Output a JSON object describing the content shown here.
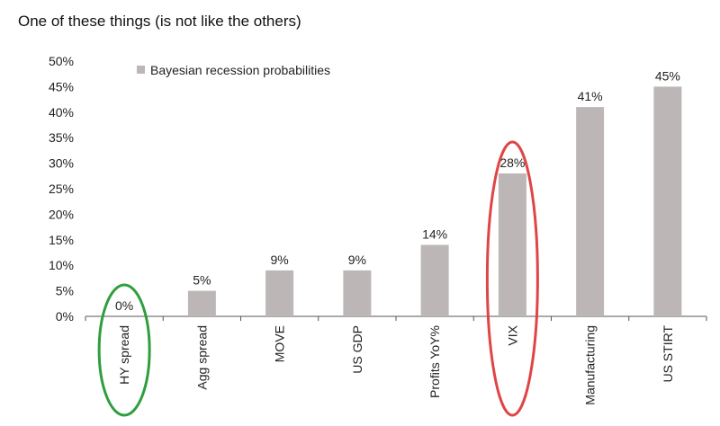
{
  "title": "One of these things (is not like the others)",
  "chart_data": {
    "type": "bar",
    "categories": [
      "HY spread",
      "Agg spread",
      "MOVE",
      "US GDP",
      "Profits YoY%",
      "VIX",
      "Manufacturing",
      "US STIRT"
    ],
    "series": [
      {
        "name": "Bayesian recession probabilities",
        "values": [
          0,
          5,
          9,
          9,
          14,
          28,
          41,
          45
        ]
      }
    ],
    "data_labels": [
      "0%",
      "5%",
      "9%",
      "9%",
      "14%",
      "28%",
      "41%",
      "45%"
    ],
    "ylim": [
      0,
      50
    ],
    "yticks": [
      "0%",
      "5%",
      "10%",
      "15%",
      "20%",
      "25%",
      "30%",
      "35%",
      "40%",
      "45%",
      "50%"
    ],
    "xlabel": "",
    "ylabel": "",
    "grid": false,
    "legend_position": "top-left",
    "highlights": [
      {
        "category": "HY spread",
        "color": "#2e9e3e"
      },
      {
        "category": "VIX",
        "color": "#e04545"
      }
    ],
    "colors": {
      "bar": "#bdb6b6",
      "axis": "#555555"
    }
  }
}
